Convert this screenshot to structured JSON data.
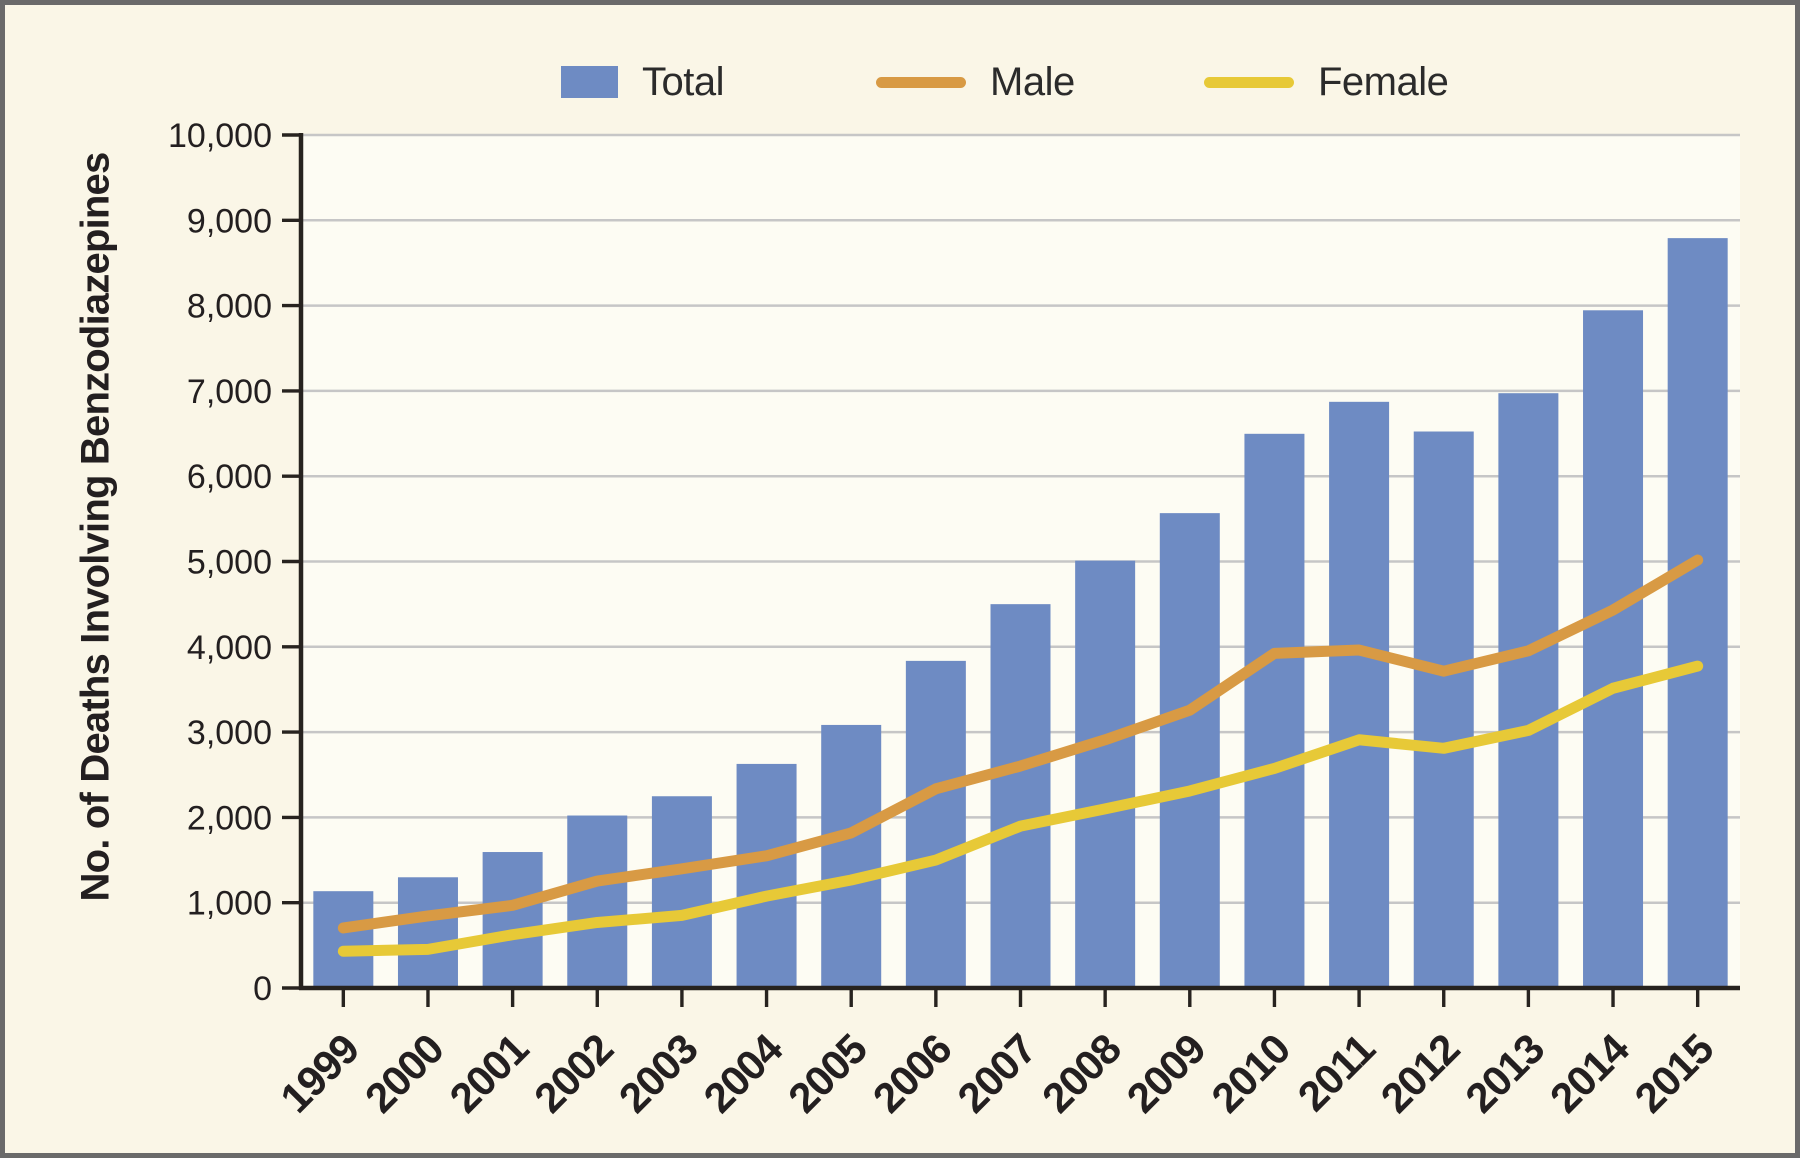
{
  "frame": {
    "background": "#FAF6E7",
    "border_color": "#6A6A6A"
  },
  "chart_data": {
    "type": "bar",
    "title": "",
    "ylabel": "No. of Deaths Involving Benzodiazepines",
    "xlabel": "",
    "categories": [
      "1999",
      "2000",
      "2001",
      "2002",
      "2003",
      "2004",
      "2005",
      "2006",
      "2007",
      "2008",
      "2009",
      "2010",
      "2011",
      "2012",
      "2013",
      "2014",
      "2015"
    ],
    "series": [
      {
        "name": "Total",
        "type": "bar",
        "color": "#6E8BC3",
        "values": [
          1135,
          1298,
          1594,
          2022,
          2248,
          2627,
          3084,
          3835,
          4500,
          5010,
          5567,
          6497,
          6872,
          6524,
          6973,
          7945,
          8791
        ]
      },
      {
        "name": "Male",
        "type": "line",
        "color": "#D89A44",
        "values": [
          704,
          845,
          969,
          1254,
          1397,
          1550,
          1818,
          2335,
          2602,
          2910,
          3257,
          3923,
          3962,
          3714,
          3953,
          4431,
          5017
        ]
      },
      {
        "name": "Female",
        "type": "line",
        "color": "#E7C937",
        "values": [
          431,
          453,
          625,
          768,
          851,
          1077,
          1266,
          1500,
          1898,
          2100,
          2310,
          2574,
          2910,
          2810,
          3020,
          3514,
          3774
        ]
      }
    ],
    "ylim": [
      0,
      10000
    ],
    "y_tick_step": 1000,
    "y_ticks": [
      "0",
      "1,000",
      "2,000",
      "3,000",
      "4,000",
      "5,000",
      "6,000",
      "7,000",
      "8,000",
      "9,000",
      "10,000"
    ],
    "grid": "horizontal",
    "legend_position": "top",
    "plot_background": "#FDFCF3",
    "grid_color": "#C6C6C6",
    "axis_color": "#27231F",
    "text_color": "#231F20"
  }
}
